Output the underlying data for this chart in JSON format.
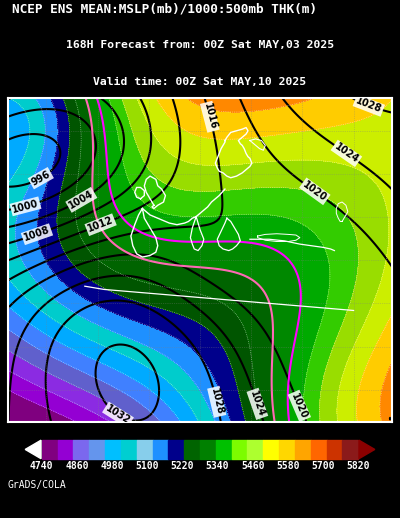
{
  "title_line1": "NCEP ENS MEAN:MSLP(mb)/1000:500mb THK(m)",
  "title_line2": "168H Forecast from: 00Z Sat MAY,03 2025",
  "title_line3": "Valid time: 00Z Sat MAY,10 2025",
  "colorbar_values": [
    4740,
    4860,
    4980,
    5100,
    5220,
    5340,
    5460,
    5580,
    5700,
    5820
  ],
  "cb_colors": [
    "#800080",
    "#9400D3",
    "#7B68EE",
    "#6495ED",
    "#00BFFF",
    "#00CED1",
    "#87CEEB",
    "#1E90FF",
    "#00008B",
    "#006400",
    "#008000",
    "#00C000",
    "#7CFC00",
    "#ADFF2F",
    "#FFFF00",
    "#FFD700",
    "#FFA500",
    "#FF6600",
    "#CC3300",
    "#8B1A1A"
  ],
  "thickness_colors": [
    "#7F007F",
    "#9400D3",
    "#8B2BE2",
    "#6060CC",
    "#4080FF",
    "#00AAFF",
    "#00CCCC",
    "#1E90FF",
    "#00008B",
    "#005500",
    "#006400",
    "#008800",
    "#00AA00",
    "#33CC00",
    "#99DD00",
    "#CCEE00",
    "#FFCC00",
    "#FF8800",
    "#DD4400",
    "#882200"
  ],
  "background_color": "#000000",
  "font_color": "#ffffff",
  "grads_cola_text": "GrADS/COLA"
}
